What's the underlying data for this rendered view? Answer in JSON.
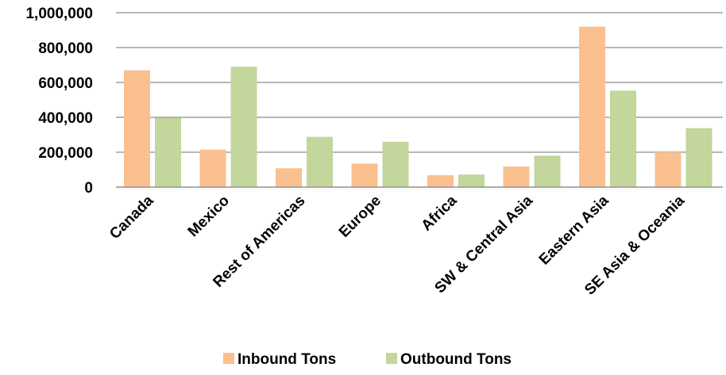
{
  "chart_data": {
    "type": "bar",
    "title": "",
    "xlabel": "",
    "ylabel": "",
    "ylim": [
      0,
      1000000
    ],
    "yticks": [
      0,
      200000,
      400000,
      600000,
      800000,
      1000000
    ],
    "ytick_labels": [
      "0",
      "200,000",
      "400,000",
      "600,000",
      "800,000",
      "1,000,000"
    ],
    "grid": true,
    "legend_position": "bottom",
    "categories": [
      "Canada",
      "Mexico",
      "Rest of Americas",
      "Europe",
      "Africa",
      "SW & Central Asia",
      "Eastern Asia",
      "SE Asia & Oceania"
    ],
    "series": [
      {
        "name": "Inbound Tons",
        "color": "#fac090",
        "values": [
          670000,
          215000,
          108000,
          135000,
          68000,
          118000,
          920000,
          200000
        ]
      },
      {
        "name": "Outbound Tons",
        "color": "#c3d69b",
        "values": [
          397000,
          690000,
          288000,
          260000,
          72000,
          180000,
          553000,
          338000
        ]
      }
    ]
  }
}
